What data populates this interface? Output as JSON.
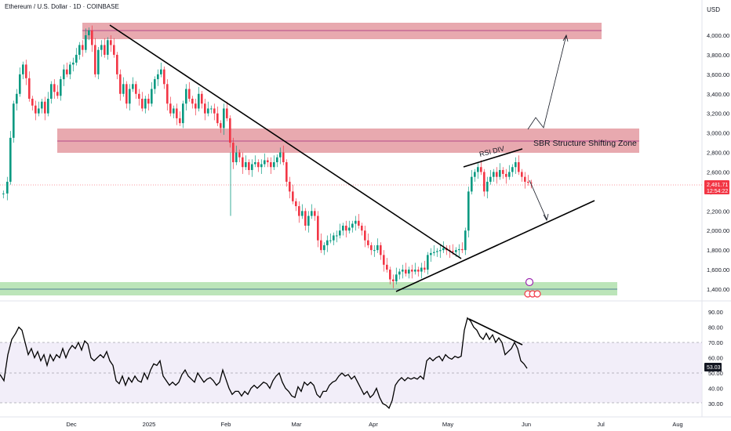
{
  "header": {
    "title": "Ethereum / U.S. Dollar · 1D · COINBASE",
    "currency": "USD"
  },
  "price_axis": {
    "ticks": [
      "4,000.00",
      "3,800.00",
      "3,600.00",
      "3,400.00",
      "3,200.00",
      "3,000.00",
      "2,800.00",
      "2,600.00",
      "2,400.00",
      "2,200.00",
      "2,000.00",
      "1,800.00",
      "1,600.00",
      "1,400.00"
    ],
    "tick_values": [
      4000,
      3800,
      3600,
      3400,
      3200,
      3000,
      2800,
      2600,
      2400,
      2200,
      2000,
      1800,
      1600,
      1400
    ],
    "current_price": "2,481.71",
    "current_price_value": 2481.71,
    "countdown": "12:54:22"
  },
  "rsi_axis": {
    "ticks": [
      "90.00",
      "80.00",
      "70.00",
      "60.00",
      "50.00",
      "40.00",
      "30.00"
    ],
    "tick_values": [
      90,
      80,
      70,
      60,
      50,
      40,
      30
    ],
    "current": "53.03",
    "current_value": 53.03,
    "upper_band": 70,
    "lower_band": 30,
    "mid_line": 50
  },
  "time_axis": {
    "labels": [
      "Dec",
      "2025",
      "Feb",
      "Mar",
      "Apr",
      "May",
      "Jun",
      "Jul",
      "Aug"
    ]
  },
  "annotations": {
    "zone_label": "SBR Structure Shifting Zone",
    "rsi_div_label": "RSI DIV"
  },
  "colors": {
    "up": "#089981",
    "down": "#f23645",
    "resistance_zone": "#d9707a",
    "support_zone": "#8fd48a",
    "rsi_band": "#ede7f6",
    "price_badge": "#f23645",
    "trendline": "#000000"
  },
  "chart_data": {
    "type": "candlestick",
    "grid": false,
    "price_ylim": [
      1300,
      4150
    ],
    "rsi_ylim": [
      25,
      95
    ],
    "zones": [
      {
        "name": "upper resistance",
        "from": 3960,
        "to": 4130
      },
      {
        "name": "SBR structure shifting zone",
        "from": 2790,
        "to": 3040
      },
      {
        "name": "support",
        "from": 1360,
        "to": 1460
      }
    ],
    "key_prices": {
      "december_high": 4100,
      "february_spike_low": 2150,
      "april_low": 1390,
      "may_high": 2740,
      "current": 2481.71,
      "projected_dip": 2140,
      "projected_target": 4000
    },
    "rsi_key_values": {
      "may_peak": 87,
      "late_may_peak": 70,
      "current": 53.03,
      "april_low": 27
    }
  }
}
